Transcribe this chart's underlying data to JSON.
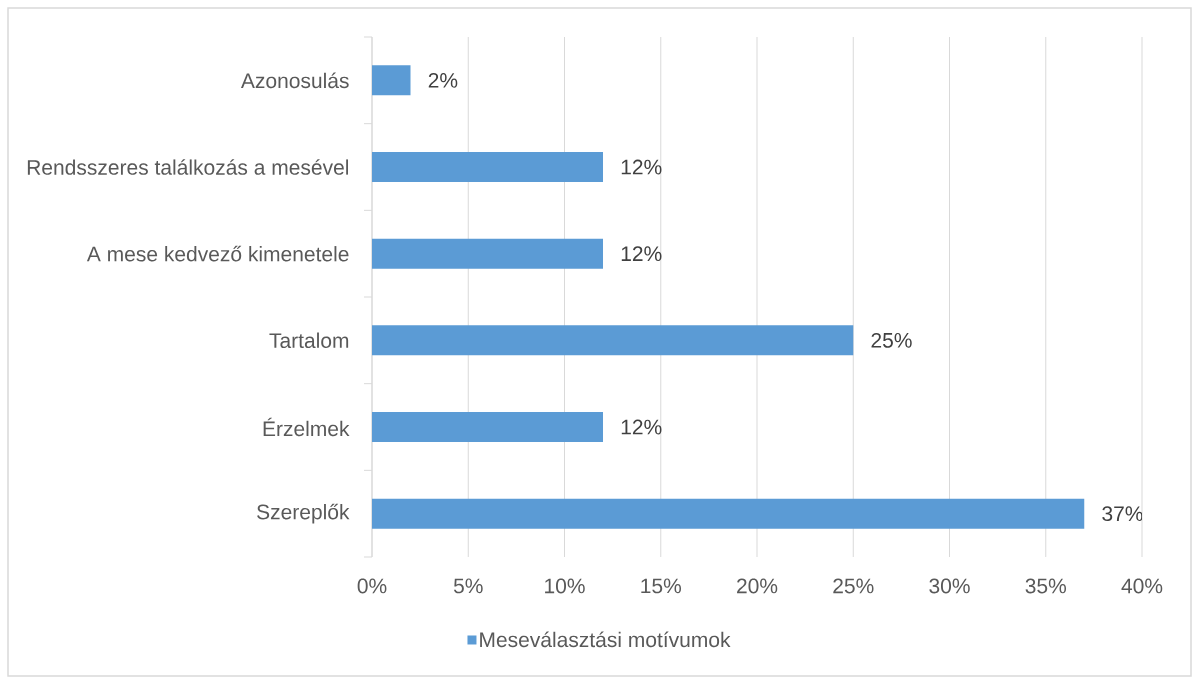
{
  "chart_data": {
    "type": "bar",
    "orientation": "horizontal",
    "categories": [
      "Azonosulás",
      "Rendsszeres találkozás a mesével",
      "A mese kedvező kimenetele",
      "Tartalom",
      "Érzelmek",
      "Szereplők"
    ],
    "series": [
      {
        "name": "Meseválasztási motívumok",
        "color": "#5b9bd5",
        "values": [
          2,
          12,
          12,
          25,
          12,
          37
        ],
        "value_labels": [
          "2%",
          "12%",
          "12%",
          "25%",
          "12%",
          "37%"
        ]
      }
    ],
    "xlim": [
      0,
      40
    ],
    "xticks": [
      {
        "value": 0,
        "label": "0%"
      },
      {
        "value": 5,
        "label": "5%"
      },
      {
        "value": 10,
        "label": "10%"
      },
      {
        "value": 15,
        "label": "15%"
      },
      {
        "value": 20,
        "label": "20%"
      },
      {
        "value": 25,
        "label": "25%"
      },
      {
        "value": 30,
        "label": "30%"
      },
      {
        "value": 35,
        "label": "35%"
      },
      {
        "value": 40,
        "label": "40%"
      }
    ],
    "grid": "x",
    "legend": "bottom"
  }
}
